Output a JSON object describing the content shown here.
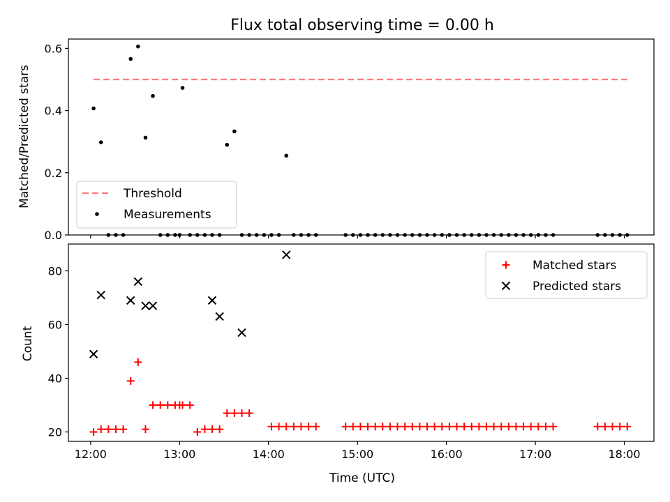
{
  "title": "Flux total observing time = 0.00 h",
  "chart_data": [
    {
      "type": "scatter",
      "ylabel": "Matched/Predicted stars",
      "ylim": [
        0.0,
        0.63
      ],
      "yticks": [
        0.0,
        0.2,
        0.4,
        0.6
      ],
      "ytick_labels": [
        "0.0",
        "0.2",
        "0.4",
        "0.6"
      ],
      "legend_position": "lower-left",
      "threshold": {
        "name": "Threshold",
        "value": 0.5,
        "x_range": [
          "12:02",
          "18:02"
        ],
        "color": "#ff7a7a"
      },
      "series": [
        {
          "name": "Measurements",
          "color": "#000000",
          "x": [
            "12:02",
            "12:07",
            "12:12",
            "12:17",
            "12:22",
            "12:27",
            "12:32",
            "12:37",
            "12:42",
            "12:47",
            "12:52",
            "12:57",
            "13:00",
            "13:02",
            "13:07",
            "13:12",
            "13:17",
            "13:22",
            "13:27",
            "13:32",
            "13:37",
            "13:42",
            "13:47",
            "13:52",
            "13:57",
            "14:02",
            "14:07",
            "14:12",
            "14:17",
            "14:22",
            "14:27",
            "14:32",
            "14:52",
            "14:57",
            "15:02",
            "15:07",
            "15:12",
            "15:17",
            "15:22",
            "15:27",
            "15:32",
            "15:37",
            "15:42",
            "15:47",
            "15:52",
            "15:57",
            "16:02",
            "16:07",
            "16:12",
            "16:17",
            "16:22",
            "16:27",
            "16:32",
            "16:37",
            "16:42",
            "16:47",
            "16:52",
            "16:57",
            "17:02",
            "17:07",
            "17:12",
            "17:42",
            "17:47",
            "17:52",
            "17:57",
            "18:02"
          ],
          "y": [
            0.407,
            0.298,
            0,
            0,
            0,
            0.566,
            0.606,
            0.313,
            0.447,
            0,
            0,
            0,
            0,
            0.473,
            0,
            0,
            0,
            0,
            0,
            0.29,
            0.333,
            0,
            0,
            0,
            0,
            0,
            0,
            0.255,
            0,
            0,
            0,
            0,
            0,
            0,
            0,
            0,
            0,
            0,
            0,
            0,
            0,
            0,
            0,
            0,
            0,
            0,
            0,
            0,
            0,
            0,
            0,
            0,
            0,
            0,
            0,
            0,
            0,
            0,
            0,
            0,
            0,
            0,
            0,
            0,
            0,
            0
          ]
        }
      ]
    },
    {
      "type": "scatter",
      "xlabel": "Time (UTC)",
      "ylabel": "Count",
      "ylim": [
        16.5,
        90
      ],
      "yticks": [
        20,
        40,
        60,
        80
      ],
      "ytick_labels": [
        "20",
        "40",
        "60",
        "80"
      ],
      "xticks": [
        "12:00",
        "13:00",
        "14:00",
        "15:00",
        "16:00",
        "17:00",
        "18:00"
      ],
      "xtick_labels": [
        "12:00",
        "13:00",
        "14:00",
        "15:00",
        "16:00",
        "17:00",
        "18:00"
      ],
      "x_range": [
        "11:45",
        "18:20"
      ],
      "legend_position": "top-right",
      "series": [
        {
          "name": "Matched stars",
          "marker": "plus",
          "color": "#ff0000",
          "x": [
            "12:02",
            "12:07",
            "12:12",
            "12:17",
            "12:22",
            "12:27",
            "12:32",
            "12:37",
            "12:42",
            "12:47",
            "12:52",
            "12:57",
            "13:00",
            "13:02",
            "13:07",
            "13:12",
            "13:17",
            "13:22",
            "13:27",
            "13:32",
            "13:37",
            "13:42",
            "13:47",
            "14:02",
            "14:07",
            "14:12",
            "14:17",
            "14:22",
            "14:27",
            "14:32",
            "14:52",
            "14:57",
            "15:02",
            "15:07",
            "15:12",
            "15:17",
            "15:22",
            "15:27",
            "15:32",
            "15:37",
            "15:42",
            "15:47",
            "15:52",
            "15:57",
            "16:02",
            "16:07",
            "16:12",
            "16:17",
            "16:22",
            "16:27",
            "16:32",
            "16:37",
            "16:42",
            "16:47",
            "16:52",
            "16:57",
            "17:02",
            "17:07",
            "17:12",
            "17:42",
            "17:47",
            "17:52",
            "17:57",
            "18:02"
          ],
          "y": [
            20,
            21,
            21,
            21,
            21,
            39,
            46,
            21,
            30,
            30,
            30,
            30,
            30,
            30,
            30,
            20,
            21,
            21,
            21,
            27,
            27,
            27,
            27,
            22,
            22,
            22,
            22,
            22,
            22,
            22,
            22,
            22,
            22,
            22,
            22,
            22,
            22,
            22,
            22,
            22,
            22,
            22,
            22,
            22,
            22,
            22,
            22,
            22,
            22,
            22,
            22,
            22,
            22,
            22,
            22,
            22,
            22,
            22,
            22,
            22,
            22,
            22,
            22,
            22
          ]
        },
        {
          "name": "Predicted stars",
          "marker": "x",
          "color": "#000000",
          "x": [
            "12:02",
            "12:07",
            "12:27",
            "12:32",
            "12:37",
            "12:42",
            "13:22",
            "13:27",
            "13:42",
            "14:12"
          ],
          "y": [
            49,
            71,
            69,
            76,
            67,
            67,
            69,
            63,
            57,
            86
          ]
        }
      ]
    }
  ]
}
